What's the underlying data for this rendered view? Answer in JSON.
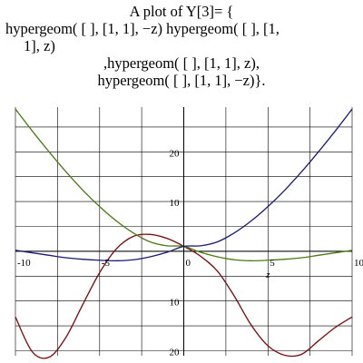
{
  "chart_data": {
    "type": "line",
    "title_lines": [
      "A plot of Y[3]= {",
      "hypergeom( [ ], [1, 1], −z) hypergeom( [ ], [1,",
      "1], z)",
      ",hypergeom( [ ], [1, 1], z),",
      "hypergeom( [ ], [1, 1], −z)}."
    ],
    "xlabel": "z",
    "ylabel": "",
    "xlim": [
      -10,
      10
    ],
    "ylim": [
      -21,
      29
    ],
    "x_ticks": [
      -10,
      -5,
      0,
      5,
      10
    ],
    "x_tick_labels": [
      "-10",
      "-5",
      "0",
      "5",
      "10"
    ],
    "y_ticks": [
      -20,
      -10,
      10,
      20
    ],
    "y_tick_labels": [
      "20",
      "10",
      "10",
      "20"
    ],
    "grid": true,
    "series": [
      {
        "color": "#7a0a0a",
        "x": [
          -10,
          -9,
          -8,
          -7,
          -6,
          -5,
          -4,
          -3,
          -2,
          -1,
          0,
          1,
          2,
          3,
          4,
          5,
          6,
          7,
          8,
          9,
          10
        ],
        "y": [
          -13.2,
          -20.2,
          -21.3,
          -17.3,
          -10.7,
          -4.3,
          0.5,
          3.0,
          3.4,
          2.6,
          1.0,
          -1.0,
          -4.0,
          -9.0,
          -14.8,
          -19.0,
          -20.9,
          -20.7,
          -18.0,
          -15.3,
          -13.2
        ]
      },
      {
        "color": "#4a7a10",
        "x": [
          -10,
          -9,
          -8,
          -7,
          -6,
          -5,
          -4,
          -3,
          -2,
          -1,
          0,
          1,
          2,
          3,
          4,
          5,
          6,
          7,
          8,
          9,
          10
        ],
        "y": [
          28.6,
          24.2,
          20.0,
          16.0,
          12.3,
          9.0,
          6.1,
          3.7,
          1.9,
          1.1,
          1.0,
          -0.2,
          -1.1,
          -1.7,
          -1.9,
          -1.8,
          -1.6,
          -1.3,
          -0.8,
          -0.3,
          0.2
        ]
      },
      {
        "color": "#1a1a7a",
        "x": [
          -10,
          -9,
          -8,
          -7,
          -6,
          -5,
          -4,
          -3,
          -2,
          -1,
          0,
          1,
          2,
          3,
          4,
          5,
          6,
          7,
          8,
          9,
          10
        ],
        "y": [
          0.2,
          -0.3,
          -0.8,
          -1.3,
          -1.6,
          -1.8,
          -1.9,
          -1.7,
          -1.1,
          -0.2,
          1.0,
          1.1,
          1.9,
          3.7,
          6.1,
          9.0,
          12.3,
          16.0,
          20.0,
          24.2,
          28.6
        ]
      }
    ]
  }
}
